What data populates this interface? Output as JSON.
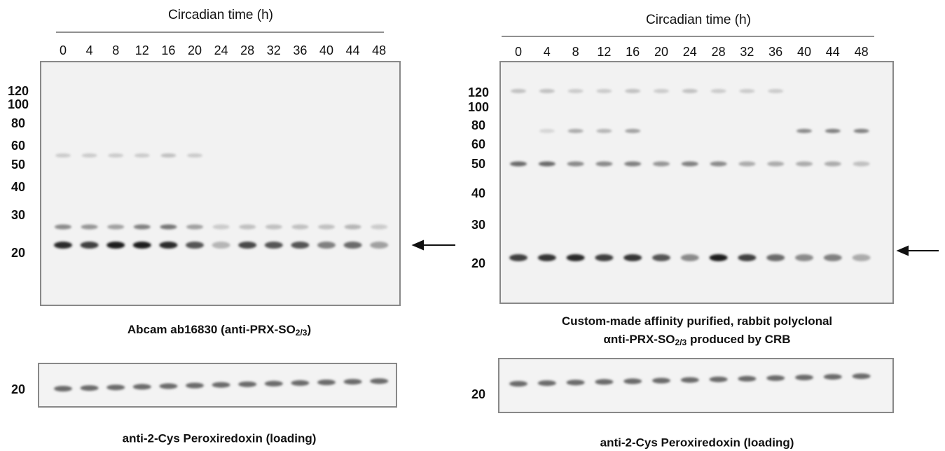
{
  "panels": [
    {
      "header": "Circadian time (h)",
      "lanes": [
        "0",
        "4",
        "8",
        "12",
        "16",
        "20",
        "24",
        "28",
        "32",
        "36",
        "40",
        "44",
        "48"
      ],
      "markers": [
        "120",
        "100",
        "80",
        "60",
        "50",
        "40",
        "30",
        "20"
      ],
      "caption": [
        {
          "text": "Abcam ab16830 (anti-PRX-SO",
          "sub": "2/3",
          "end": ")"
        }
      ],
      "loading_marker": "20",
      "loading_caption": "anti-2-Cys Peroxiredoxin (loading)"
    },
    {
      "header": "Circadian time (h)",
      "lanes": [
        "0",
        "4",
        "8",
        "12",
        "16",
        "20",
        "24",
        "28",
        "32",
        "36",
        "40",
        "44",
        "48"
      ],
      "markers": [
        "120",
        "100",
        "80",
        "60",
        "50",
        "40",
        "30",
        "20"
      ],
      "caption": [
        {
          "text": "Custom-made affinity purified, rabbit polyclonal"
        },
        {
          "text": "αnti-PRX-SO",
          "sub": "2/3",
          "end": " produced by CRB"
        }
      ],
      "loading_marker": "20",
      "loading_caption": "anti-2-Cys Peroxiredoxin (loading)"
    }
  ]
}
